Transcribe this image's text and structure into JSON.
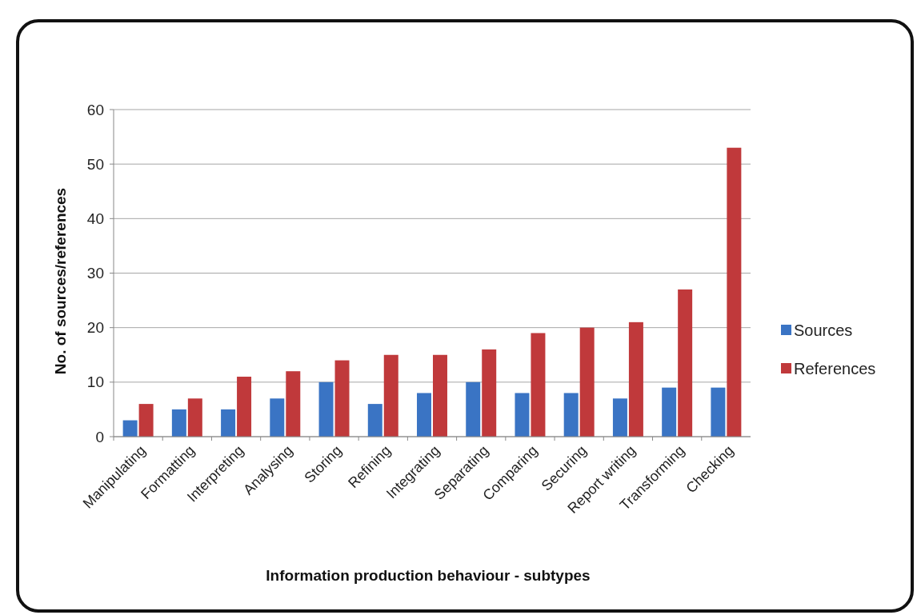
{
  "chart_data": {
    "type": "bar",
    "xlabel": "Information production behaviour - subtypes",
    "ylabel": "No. of sources/references",
    "categories": [
      "Manipulating",
      "Formatting",
      "Interpreting",
      "Analysing",
      "Storing",
      "Refining",
      "Integrating",
      "Separating",
      "Comparing",
      "Securing",
      "Report writing",
      "Transforming",
      "Checking"
    ],
    "series": [
      {
        "name": "Sources",
        "color": "#3a74c4",
        "values": [
          3,
          5,
          5,
          7,
          10,
          6,
          8,
          10,
          8,
          8,
          7,
          9,
          9
        ]
      },
      {
        "name": "References",
        "color": "#c0393b",
        "values": [
          6,
          7,
          11,
          12,
          14,
          15,
          15,
          16,
          19,
          20,
          21,
          27,
          53
        ]
      }
    ],
    "ylim": [
      0,
      60
    ],
    "yticks": [
      0,
      10,
      20,
      30,
      40,
      50,
      60
    ],
    "grid": "y",
    "legend": "right"
  }
}
